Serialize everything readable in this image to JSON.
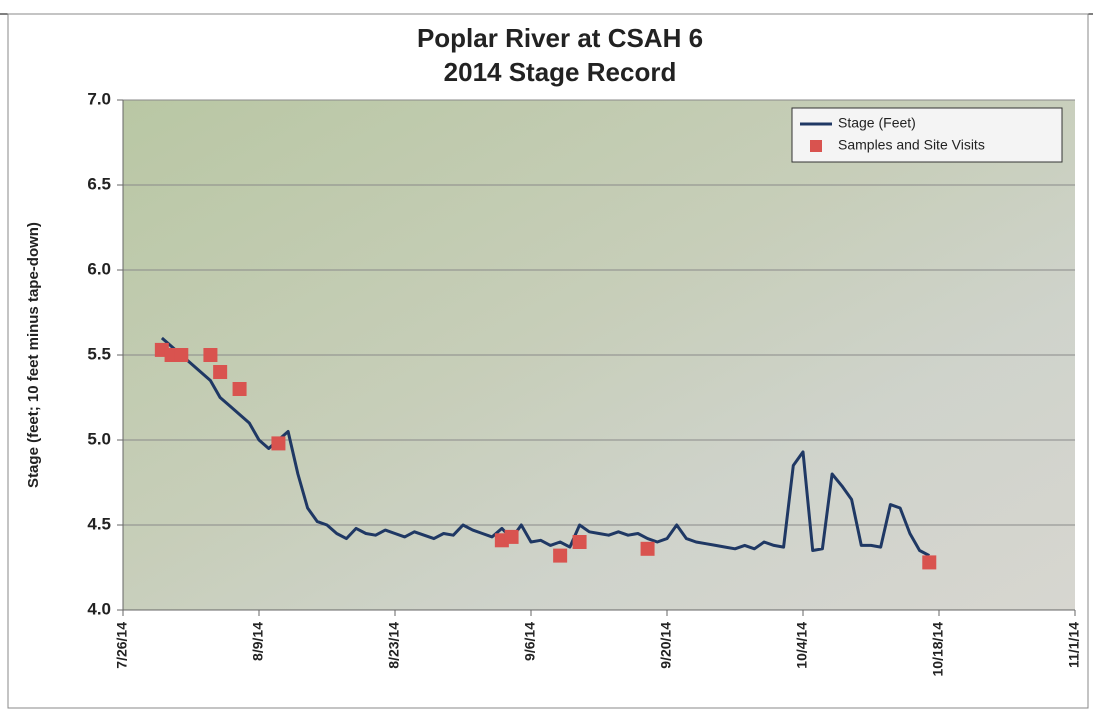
{
  "chart_data": {
    "type": "line",
    "title": "Poplar River at CSAH 6",
    "subtitle": "2014 Stage Record",
    "y_label": "Stage (feet; 10 feet minus tape-down)",
    "xlim": [
      "2014-07-26",
      "2014-11-01"
    ],
    "xticks": [
      {
        "value": "2014-07-26",
        "label": "7/26/14"
      },
      {
        "value": "2014-08-09",
        "label": "8/9/14"
      },
      {
        "value": "2014-08-23",
        "label": "8/23/14"
      },
      {
        "value": "2014-09-06",
        "label": "9/6/14"
      },
      {
        "value": "2014-09-20",
        "label": "9/20/14"
      },
      {
        "value": "2014-10-04",
        "label": "10/4/14"
      },
      {
        "value": "2014-10-18",
        "label": "10/18/14"
      },
      {
        "value": "2014-11-01",
        "label": "11/1/14"
      }
    ],
    "ylim": [
      4,
      7
    ],
    "yticks": [
      {
        "value": 4,
        "label": "4.0"
      },
      4.5,
      {
        "value": 5,
        "label": "5.0"
      },
      5.5,
      {
        "value": 6,
        "label": "6.0"
      },
      6.5,
      {
        "value": 7,
        "label": "7.0"
      }
    ],
    "grid": true,
    "legend": "top-right",
    "series": [
      {
        "name": "Stage (Feet)",
        "color": "#1f3864",
        "mark": "line",
        "x": [
          "2014-07-30",
          "2014-07-31",
          "2014-08-01",
          "2014-08-02",
          "2014-08-03",
          "2014-08-04",
          "2014-08-05",
          "2014-08-06",
          "2014-08-07",
          "2014-08-08",
          "2014-08-09",
          "2014-08-10",
          "2014-08-11",
          "2014-08-12",
          "2014-08-13",
          "2014-08-14",
          "2014-08-15",
          "2014-08-16",
          "2014-08-17",
          "2014-08-18",
          "2014-08-19",
          "2014-08-20",
          "2014-08-21",
          "2014-08-22",
          "2014-08-23",
          "2014-08-24",
          "2014-08-25",
          "2014-08-26",
          "2014-08-27",
          "2014-08-28",
          "2014-08-29",
          "2014-08-30",
          "2014-08-31",
          "2014-09-01",
          "2014-09-02",
          "2014-09-03",
          "2014-09-04",
          "2014-09-05",
          "2014-09-06",
          "2014-09-07",
          "2014-09-08",
          "2014-09-09",
          "2014-09-10",
          "2014-09-11",
          "2014-09-12",
          "2014-09-13",
          "2014-09-14",
          "2014-09-15",
          "2014-09-16",
          "2014-09-17",
          "2014-09-18",
          "2014-09-19",
          "2014-09-20",
          "2014-09-21",
          "2014-09-22",
          "2014-09-23",
          "2014-09-24",
          "2014-09-25",
          "2014-09-26",
          "2014-09-27",
          "2014-09-28",
          "2014-09-29",
          "2014-09-30",
          "2014-10-01",
          "2014-10-02",
          "2014-10-03",
          "2014-10-04",
          "2014-10-05",
          "2014-10-06",
          "2014-10-07",
          "2014-10-08",
          "2014-10-09",
          "2014-10-10",
          "2014-10-11",
          "2014-10-12",
          "2014-10-13",
          "2014-10-14",
          "2014-10-15",
          "2014-10-16",
          "2014-10-17"
        ],
        "values": [
          5.6,
          5.55,
          5.5,
          5.45,
          5.4,
          5.35,
          5.25,
          5.2,
          5.15,
          5.1,
          5.0,
          4.95,
          5.0,
          5.05,
          4.8,
          4.6,
          4.52,
          4.5,
          4.45,
          4.42,
          4.48,
          4.45,
          4.44,
          4.47,
          4.45,
          4.43,
          4.46,
          4.44,
          4.42,
          4.45,
          4.44,
          4.5,
          4.47,
          4.45,
          4.43,
          4.48,
          4.42,
          4.5,
          4.4,
          4.41,
          4.38,
          4.4,
          4.37,
          4.5,
          4.46,
          4.45,
          4.44,
          4.46,
          4.44,
          4.45,
          4.42,
          4.4,
          4.42,
          4.5,
          4.42,
          4.4,
          4.39,
          4.38,
          4.37,
          4.36,
          4.38,
          4.36,
          4.4,
          4.38,
          4.37,
          4.85,
          4.93,
          4.35,
          4.36,
          4.8,
          4.73,
          4.65,
          4.38,
          4.38,
          4.37,
          4.62,
          4.6,
          4.45,
          4.35,
          4.32
        ]
      },
      {
        "name": "Samples and Site Visits",
        "color": "#d9534f",
        "mark": "scatter",
        "x": [
          "2014-07-30",
          "2014-07-31",
          "2014-08-01",
          "2014-08-04",
          "2014-08-05",
          "2014-08-07",
          "2014-08-11",
          "2014-09-03",
          "2014-09-04",
          "2014-09-09",
          "2014-09-11",
          "2014-09-18",
          "2014-10-17"
        ],
        "values": [
          5.53,
          5.5,
          5.5,
          5.5,
          5.4,
          5.3,
          4.98,
          4.41,
          4.43,
          4.32,
          4.4,
          4.36,
          4.28
        ]
      }
    ]
  }
}
